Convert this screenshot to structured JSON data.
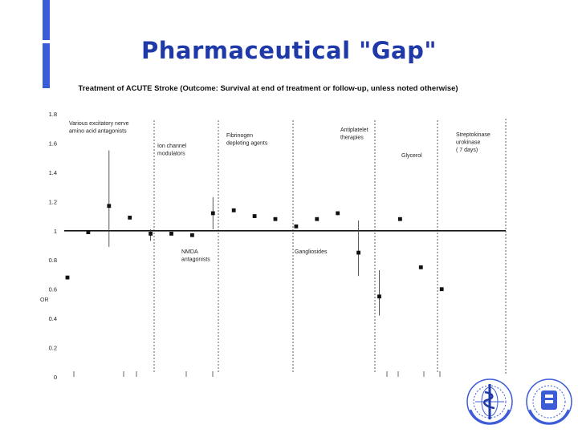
{
  "slide": {
    "title": "Pharmaceutical \"Gap\"",
    "accent_color": "#3b5cd6",
    "title_color": "#1f3aa8"
  },
  "logos": [
    {
      "icon": "who-emblem-icon",
      "color": "#3b5cd6"
    },
    {
      "icon": "organization-emblem-icon",
      "color": "#3b5cd6"
    }
  ],
  "chart_data": {
    "type": "scatter",
    "title": "Treatment of ACUTE Stroke (Outcome: Survival at end of treatment or follow-up, unless noted otherwise)",
    "ylabel": "OR",
    "xlabel": "",
    "ylim": [
      0,
      1.8
    ],
    "yticks": [
      0,
      0.2,
      0.4,
      0.6,
      0.8,
      1,
      1.2,
      1.4,
      1.6,
      1.8
    ],
    "ytick_labels": [
      "0",
      "0.2",
      "0.4",
      "0.6",
      "0.8",
      "1",
      "1.2",
      "1.4",
      "1.6",
      "1.8"
    ],
    "reference_line": 1,
    "grid": false,
    "groups": [
      {
        "label": [
          "Various excitatory nerve",
          "amino acid antagonists"
        ],
        "label_position": "top"
      },
      {
        "label": [
          "Ion channel",
          "modulators"
        ],
        "label_position": "top"
      },
      {
        "label": [
          "NMDA",
          "antagonists"
        ],
        "label_position": "bottom"
      },
      {
        "label": [
          "Fibrinogen",
          "depleting agents"
        ],
        "label_position": "top"
      },
      {
        "label": [
          "Gangliosides"
        ],
        "label_position": "bottom"
      },
      {
        "label": [
          "Antiplatelet",
          "therapies"
        ],
        "label_position": "top"
      },
      {
        "label": [
          "Glycerol"
        ],
        "label_position": "top"
      },
      {
        "label": [
          "Streptokinase",
          "urokinase",
          "( 7 days)"
        ],
        "label_position": "top"
      }
    ],
    "points": [
      {
        "x": 1,
        "y": 0.68
      },
      {
        "x": 2,
        "y": 0.99
      },
      {
        "x": 3,
        "y": 1.17,
        "ci": [
          0.89,
          1.55
        ]
      },
      {
        "x": 4,
        "y": 1.09
      },
      {
        "x": 5,
        "y": 0.98,
        "ci": [
          0.93,
          1.01
        ]
      },
      {
        "x": 6,
        "y": 0.98
      },
      {
        "x": 7,
        "y": 0.97
      },
      {
        "x": 8,
        "y": 1.12,
        "ci": [
          1.01,
          1.23
        ]
      },
      {
        "x": 9,
        "y": 1.14
      },
      {
        "x": 10,
        "y": 1.1
      },
      {
        "x": 11,
        "y": 1.08
      },
      {
        "x": 12,
        "y": 1.03
      },
      {
        "x": 13,
        "y": 1.08
      },
      {
        "x": 14,
        "y": 1.12
      },
      {
        "x": 15,
        "y": 0.85,
        "ci": [
          0.69,
          1.07
        ]
      },
      {
        "x": 16,
        "y": 0.55,
        "ci": [
          0.42,
          0.73
        ]
      },
      {
        "x": 17,
        "y": 1.08
      },
      {
        "x": 18,
        "y": 0.75
      },
      {
        "x": 19,
        "y": 0.6
      }
    ]
  }
}
